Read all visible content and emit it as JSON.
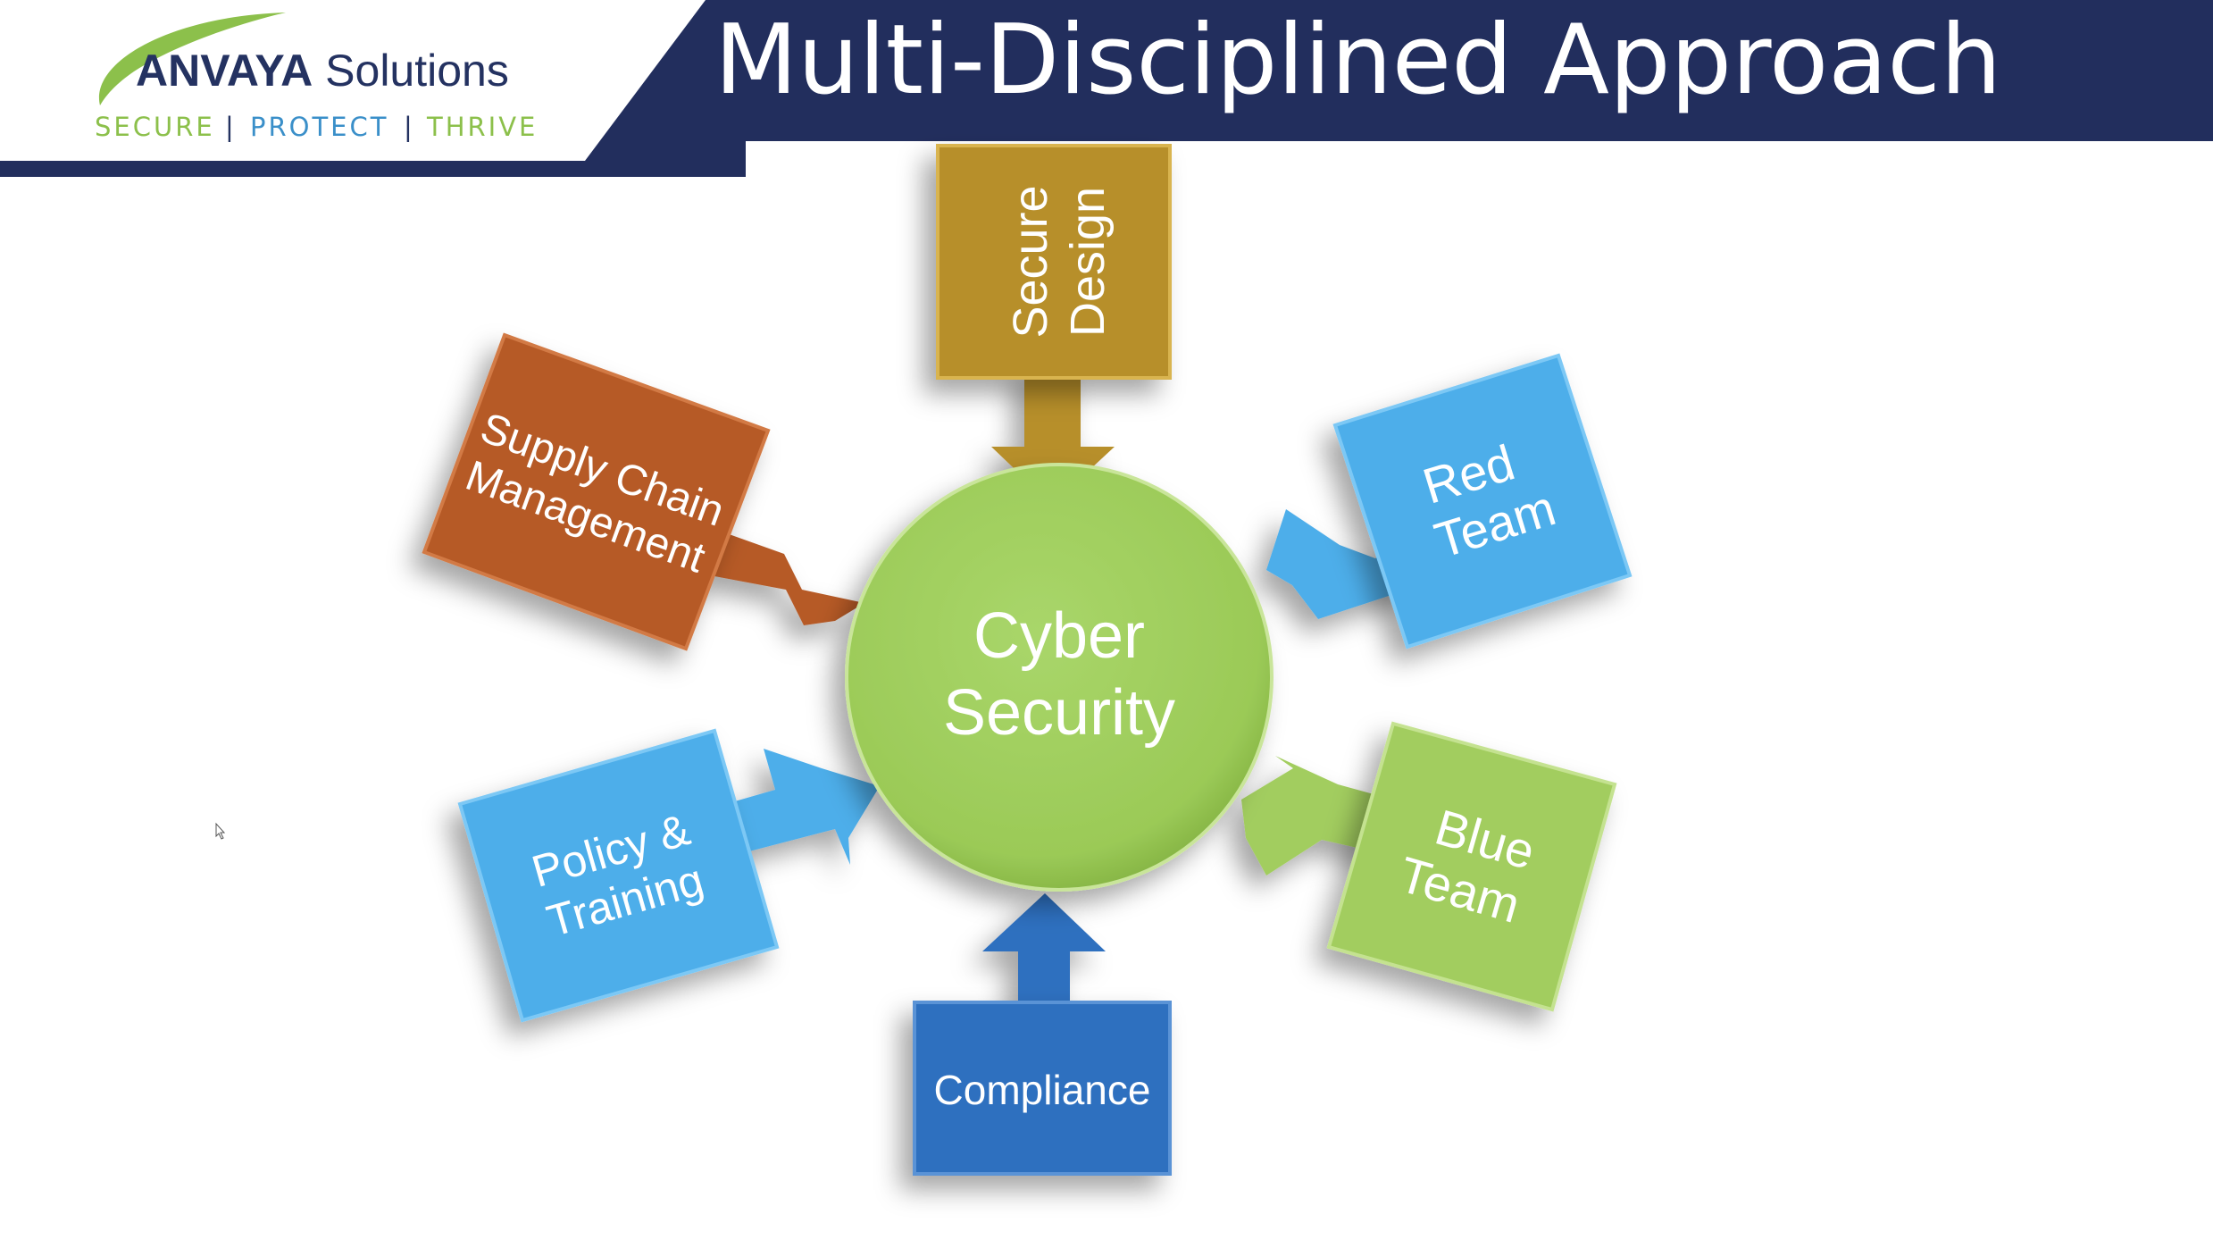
{
  "slide": {
    "title": "Multi-Disciplined Approach",
    "brand": {
      "name_bold": "ANVAYA",
      "name_light": "Solutions",
      "tagline": [
        "SECURE",
        "|",
        "PROTECT",
        "|",
        "THRIVE"
      ]
    }
  },
  "diagram": {
    "center": {
      "label_lines": [
        "Cyber",
        "Security"
      ]
    },
    "nodes": [
      {
        "id": "secure-design",
        "label_lines": [
          "Secure",
          "Design"
        ]
      },
      {
        "id": "red-team",
        "label_lines": [
          "Red",
          "Team"
        ]
      },
      {
        "id": "blue-team",
        "label_lines": [
          "Blue",
          "Team"
        ]
      },
      {
        "id": "compliance",
        "label_lines": [
          "Compliance"
        ]
      },
      {
        "id": "policy-training",
        "label_lines": [
          "Policy &",
          "Training"
        ]
      },
      {
        "id": "supply-chain",
        "label_lines": [
          "Supply Chain",
          "Management"
        ]
      }
    ]
  },
  "colors": {
    "header_navy": "#222e5d",
    "logo_green": "#8cc04b",
    "logo_blue": "#3a8fc9",
    "logo_dark": "#243261",
    "center_green": "#9fcd5e",
    "gold": "#b78f2c",
    "rust": "#b65a28",
    "light_blue": "#4eaeea",
    "lime": "#a2cd5f",
    "royal_blue": "#2f6fbf"
  }
}
